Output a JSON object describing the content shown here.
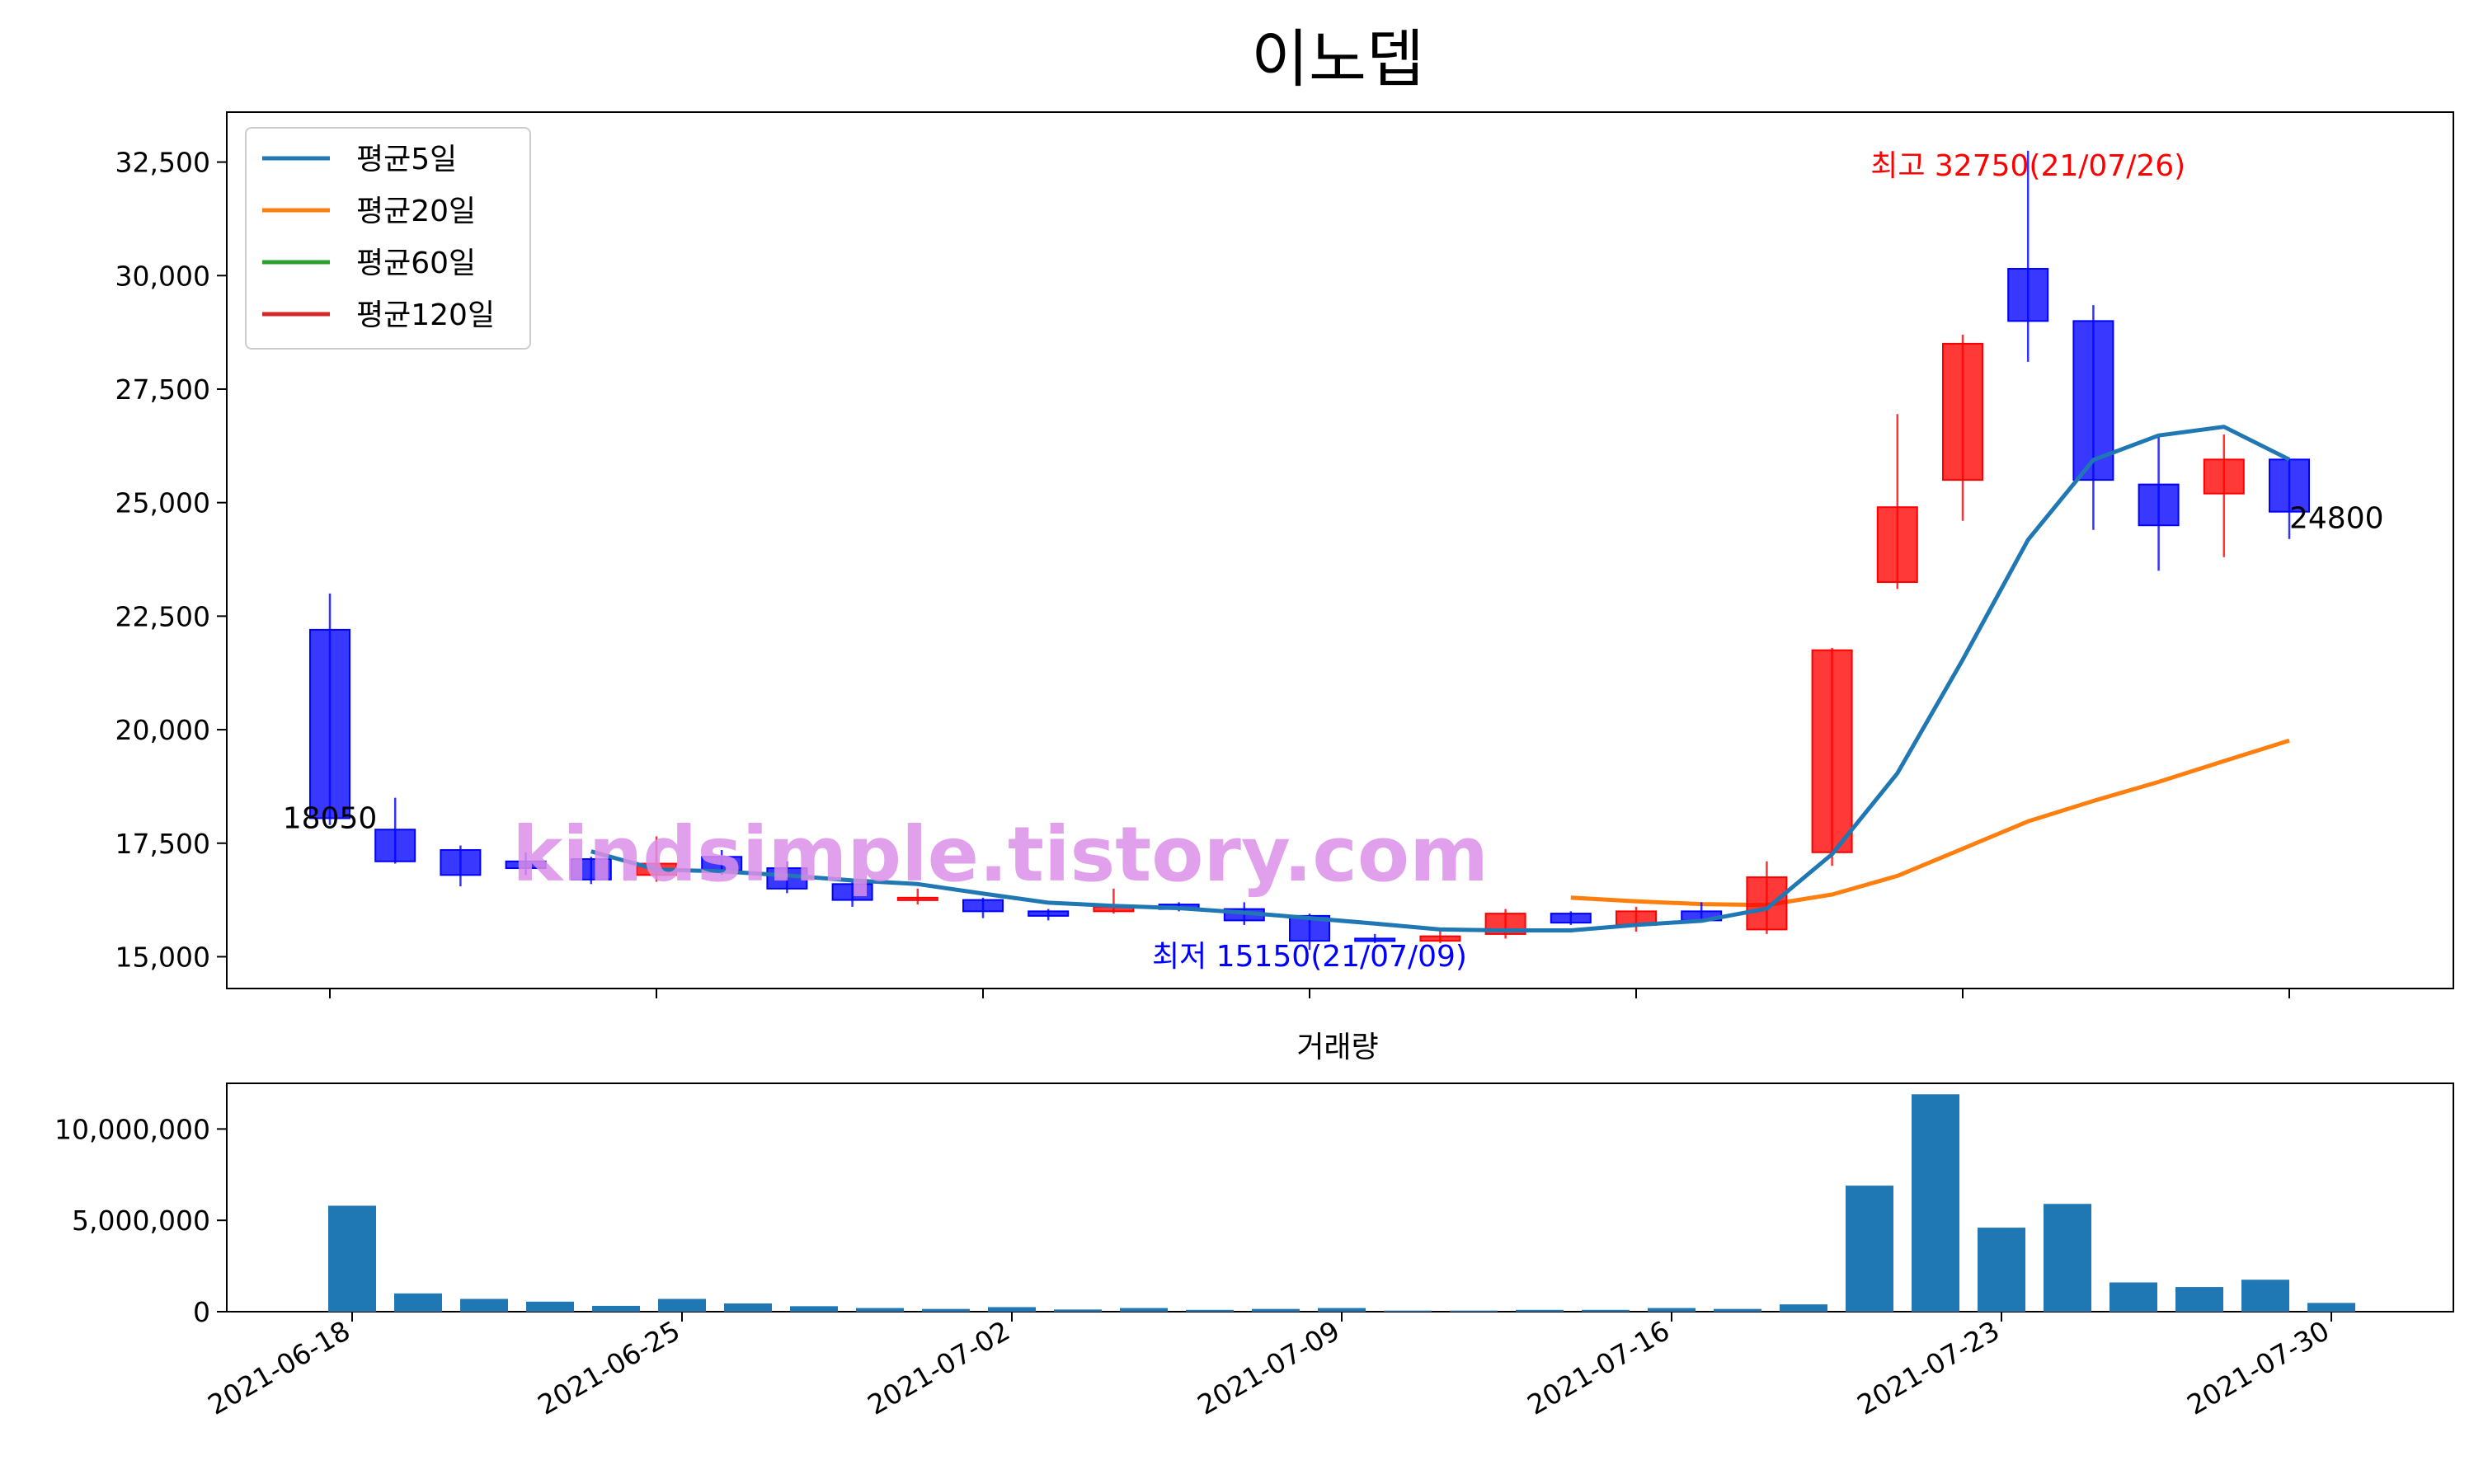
{
  "title": "이노뎁",
  "watermark": "kindsimple.tistory.com",
  "chart_data": [
    {
      "type": "candlestick",
      "legend": {
        "position": "top-left",
        "entries": [
          {
            "name": "평균5일",
            "color": "#1f77b4"
          },
          {
            "name": "평균20일",
            "color": "#ff7f0e"
          },
          {
            "name": "평균60일",
            "color": "#2ca02c"
          },
          {
            "name": "평균120일",
            "color": "#d62728"
          }
        ]
      },
      "ylim": [
        14300,
        33600
      ],
      "yticks": [
        15000,
        17500,
        20000,
        22500,
        25000,
        27500,
        30000,
        32500
      ],
      "ytick_labels": [
        "15,000",
        "17,500",
        "20,000",
        "22,500",
        "25,000",
        "27,500",
        "30,000",
        "32,500"
      ],
      "xticks": [
        "2021-06-18",
        "2021-06-25",
        "2021-07-02",
        "2021-07-09",
        "2021-07-16",
        "2021-07-23",
        "2021-07-30"
      ],
      "candles": [
        {
          "date": "2021-06-18",
          "open": 22200,
          "high": 23000,
          "low": 17900,
          "close": 18050
        },
        {
          "date": "2021-06-21",
          "open": 17800,
          "high": 18500,
          "low": 17050,
          "close": 17100
        },
        {
          "date": "2021-06-22",
          "open": 17350,
          "high": 17450,
          "low": 16550,
          "close": 16800
        },
        {
          "date": "2021-06-23",
          "open": 17100,
          "high": 17300,
          "low": 16800,
          "close": 16950
        },
        {
          "date": "2021-06-24",
          "open": 17150,
          "high": 17200,
          "low": 16600,
          "close": 16700
        },
        {
          "date": "2021-06-25",
          "open": 16800,
          "high": 17650,
          "low": 16650,
          "close": 17050
        },
        {
          "date": "2021-06-28",
          "open": 17200,
          "high": 17350,
          "low": 16800,
          "close": 16900
        },
        {
          "date": "2021-06-29",
          "open": 16950,
          "high": 17100,
          "low": 16400,
          "close": 16500
        },
        {
          "date": "2021-06-30",
          "open": 16600,
          "high": 16700,
          "low": 16100,
          "close": 16250
        },
        {
          "date": "2021-07-01",
          "open": 16250,
          "high": 16500,
          "low": 16150,
          "close": 16300
        },
        {
          "date": "2021-07-02",
          "open": 16250,
          "high": 16300,
          "low": 15850,
          "close": 16000
        },
        {
          "date": "2021-07-05",
          "open": 16000,
          "high": 16050,
          "low": 15800,
          "close": 15900
        },
        {
          "date": "2021-07-06",
          "open": 16000,
          "high": 16500,
          "low": 15950,
          "close": 16100
        },
        {
          "date": "2021-07-07",
          "open": 16150,
          "high": 16200,
          "low": 16000,
          "close": 16050
        },
        {
          "date": "2021-07-08",
          "open": 16050,
          "high": 16200,
          "low": 15700,
          "close": 15800
        },
        {
          "date": "2021-07-09",
          "open": 15900,
          "high": 15950,
          "low": 15150,
          "close": 15350
        },
        {
          "date": "2021-07-12",
          "open": 15400,
          "high": 15500,
          "low": 15300,
          "close": 15350
        },
        {
          "date": "2021-07-13",
          "open": 15350,
          "high": 15600,
          "low": 15300,
          "close": 15450
        },
        {
          "date": "2021-07-14",
          "open": 15500,
          "high": 16050,
          "low": 15400,
          "close": 15950
        },
        {
          "date": "2021-07-15",
          "open": 15950,
          "high": 16000,
          "low": 15700,
          "close": 15750
        },
        {
          "date": "2021-07-16",
          "open": 15700,
          "high": 16100,
          "low": 15550,
          "close": 16000
        },
        {
          "date": "2021-07-19",
          "open": 16000,
          "high": 16200,
          "low": 15800,
          "close": 15800
        },
        {
          "date": "2021-07-20",
          "open": 15600,
          "high": 17100,
          "low": 15500,
          "close": 16750
        },
        {
          "date": "2021-07-21",
          "open": 17300,
          "high": 21800,
          "low": 17000,
          "close": 21750
        },
        {
          "date": "2021-07-22",
          "open": 23250,
          "high": 26950,
          "low": 23100,
          "close": 24900
        },
        {
          "date": "2021-07-23",
          "open": 25500,
          "high": 28700,
          "low": 24600,
          "close": 28500
        },
        {
          "date": "2021-07-26",
          "open": 30150,
          "high": 32750,
          "low": 28100,
          "close": 29000
        },
        {
          "date": "2021-07-27",
          "open": 29000,
          "high": 29350,
          "low": 24400,
          "close": 25500
        },
        {
          "date": "2021-07-28",
          "open": 25400,
          "high": 26450,
          "low": 23500,
          "close": 24500
        },
        {
          "date": "2021-07-29",
          "open": 25200,
          "high": 26500,
          "low": 23800,
          "close": 25950
        },
        {
          "date": "2021-07-30",
          "open": 25950,
          "high": 25950,
          "low": 24200,
          "close": 24800
        }
      ],
      "ma5": [
        null,
        null,
        null,
        null,
        17320,
        16920,
        16880,
        16790,
        16680,
        16600,
        16390,
        16190,
        16120,
        16070,
        15970,
        15850,
        15730,
        15600,
        15580,
        15580,
        15700,
        15790,
        16060,
        17260,
        19040,
        21540,
        24180,
        25940,
        26480,
        26670,
        25950
      ],
      "ma20": [
        null,
        null,
        null,
        null,
        null,
        null,
        null,
        null,
        null,
        null,
        null,
        null,
        null,
        null,
        null,
        null,
        null,
        null,
        null,
        16300,
        16220,
        16160,
        16140,
        16370,
        16780,
        17380,
        17980,
        18430,
        18850,
        19310,
        19760
      ],
      "annotations": [
        {
          "label": "최고 32750(21/07/26)",
          "color": "#ff0000"
        },
        {
          "label": "최저 15150(21/07/09)",
          "color": "#0000ff"
        },
        {
          "label": "18050",
          "color": "#000000"
        },
        {
          "label": "24800",
          "color": "#000000"
        }
      ]
    },
    {
      "type": "bar",
      "title": "거래량",
      "ylim": [
        0,
        12500000
      ],
      "yticks": [
        0,
        5000000,
        10000000
      ],
      "ytick_labels": [
        "0",
        "5,000,000",
        "10,000,000"
      ],
      "color": "#1f77b4",
      "values": [
        5800000,
        1000000,
        700000,
        550000,
        320000,
        700000,
        450000,
        300000,
        200000,
        150000,
        250000,
        120000,
        200000,
        100000,
        150000,
        200000,
        60000,
        60000,
        100000,
        100000,
        200000,
        150000,
        400000,
        6900000,
        11900000,
        4600000,
        5900000,
        1600000,
        1350000,
        1750000,
        480000
      ]
    }
  ]
}
